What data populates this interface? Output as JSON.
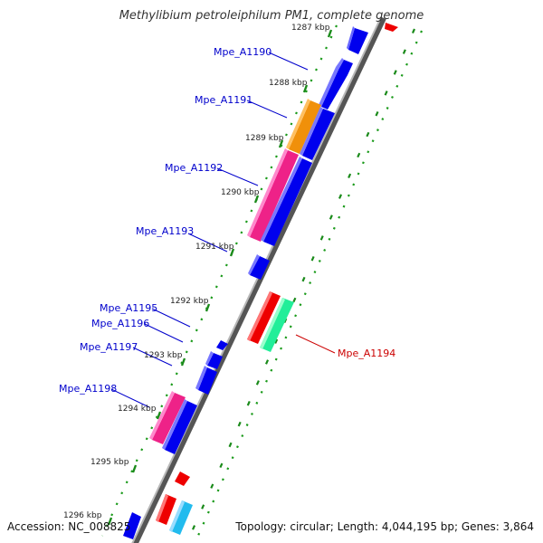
{
  "title": "Methylibium petroleiphilum PM1, complete genome",
  "footer": {
    "accession": "Accession: NC_008825",
    "topology": "Topology: circular; Length: 4,044,195 bp; Genes: 3,864"
  },
  "colors": {
    "backbone": "#808080",
    "tick_dots": "#1a9a1a",
    "gene_blue": "#0000ee",
    "gene_orange": "#f0900a",
    "gene_magenta": "#ee2288",
    "gene_red": "#ee0000",
    "gene_green": "#22ee99",
    "gene_cyan": "#22bbee",
    "label_blue": "#0000cc",
    "label_red": "#cc0000"
  },
  "kbp_ticks": [
    "1287 kbp",
    "1288 kbp",
    "1289 kbp",
    "1290 kbp",
    "1291 kbp",
    "1292 kbp",
    "1293 kbp",
    "1294 kbp",
    "1295 kbp",
    "1296 kbp"
  ],
  "gene_labels": [
    "Mpe_A1190",
    "Mpe_A1191",
    "Mpe_A1192",
    "Mpe_A1193",
    "Mpe_A1195",
    "Mpe_A1196",
    "Mpe_A1197",
    "Mpe_A1198",
    "Mpe_A1194"
  ]
}
